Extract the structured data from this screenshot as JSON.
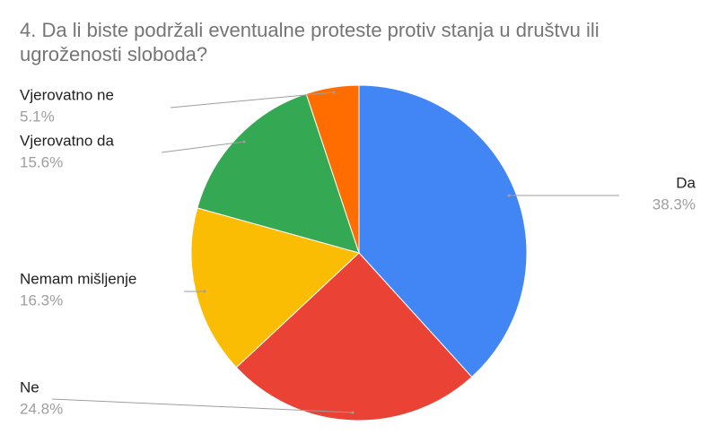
{
  "chart_data": {
    "type": "pie",
    "title": "4. Da li biste podržali eventualne proteste protiv stanja u društvu ili ugroženosti sloboda?",
    "categories": [
      "Da",
      "Ne",
      "Nemam mišljenje",
      "Vjerovatno da",
      "Vjerovatno ne"
    ],
    "values": [
      38.3,
      24.8,
      16.3,
      15.6,
      5.1
    ],
    "value_labels": [
      "38.3%",
      "24.8%",
      "16.3%",
      "15.6%",
      "5.1%"
    ],
    "colors": [
      "#4285f4",
      "#ea4335",
      "#fbbc04",
      "#34a853",
      "#ff6d01"
    ]
  }
}
